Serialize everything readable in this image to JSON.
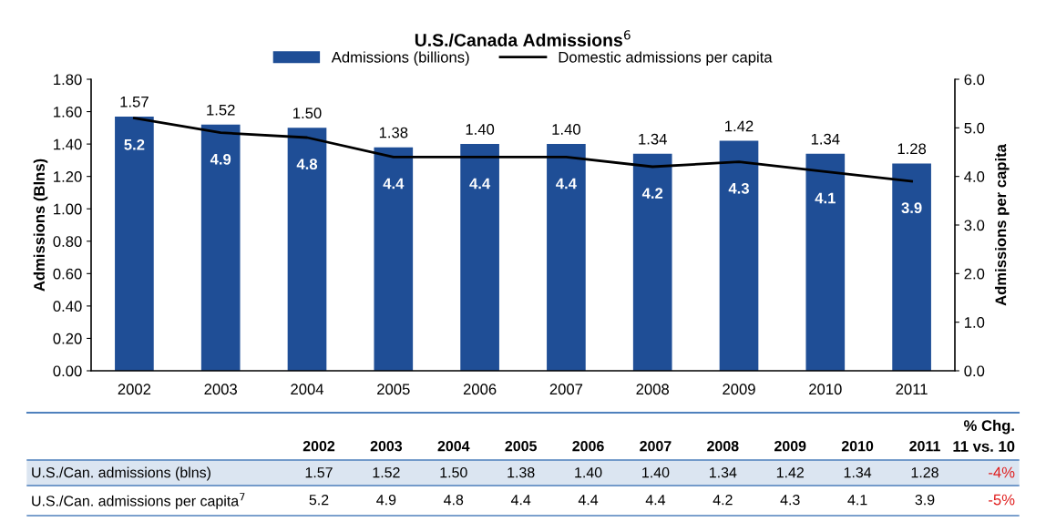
{
  "chart_data": {
    "type": "bar",
    "title": "U.S./Canada Admissions$^{6}$",
    "categories": [
      "2002",
      "2003",
      "2004",
      "2005",
      "2006",
      "2007",
      "2008",
      "2009",
      "2010",
      "2011"
    ],
    "series": [
      {
        "name": "Admissions (billions)",
        "color": "#1f4e96",
        "values": [
          1.57,
          1.52,
          1.5,
          1.38,
          1.4,
          1.4,
          1.34,
          1.42,
          1.34,
          1.28
        ],
        "value_labels": [
          "1.57",
          "1.52",
          "1.50",
          "1.38",
          "1.40",
          "1.40",
          "1.34",
          "1.42",
          "1.34",
          "1.28"
        ]
      },
      {
        "name": "Domestic admissions per capita",
        "type": "line",
        "axis": "y2",
        "color": "#000000",
        "values": [
          5.2,
          4.9,
          4.8,
          4.4,
          4.4,
          4.4,
          4.2,
          4.3,
          4.1,
          3.9
        ],
        "value_labels": [
          "5.2",
          "4.9",
          "4.8",
          "4.4",
          "4.4",
          "4.4",
          "4.2",
          "4.3",
          "4.1",
          "3.9"
        ]
      }
    ],
    "ylabel": "Admissions (Blns)",
    "y2label": "Admissions per capita",
    "ylim": [
      0,
      1.8
    ],
    "yticks": [
      {
        "value": 0,
        "label": "0.00"
      },
      {
        "value": 0.2,
        "label": "0.20"
      },
      {
        "value": 0.4,
        "label": "0.40"
      },
      {
        "value": 0.6,
        "label": "0.60"
      },
      {
        "value": 0.8,
        "label": "0.80"
      },
      {
        "value": 1.0,
        "label": "1.00"
      },
      {
        "value": 1.2,
        "label": "1.20"
      },
      {
        "value": 1.4,
        "label": "1.40"
      },
      {
        "value": 1.6,
        "label": "1.60"
      },
      {
        "value": 1.8,
        "label": "1.80"
      }
    ],
    "y2lim": [
      0,
      6
    ],
    "y2ticks": [
      {
        "value": 0,
        "label": "0.0"
      },
      {
        "value": 1,
        "label": "1.0"
      },
      {
        "value": 2,
        "label": "2.0"
      },
      {
        "value": 3,
        "label": "3.0"
      },
      {
        "value": 4,
        "label": "4.0"
      },
      {
        "value": 5,
        "label": "5.0"
      },
      {
        "value": 6,
        "label": "6.0"
      }
    ],
    "legend": "top",
    "grid": false,
    "marker": "none",
    "line_style": "solid",
    "annotations": [
      "U.S./Can. admissions (blns)",
      "U.S./Can. admissions per capita$^{7}$",
      "% Chg.\n11 vs. 10",
      "-4%",
      "-5%"
    ]
  }
}
